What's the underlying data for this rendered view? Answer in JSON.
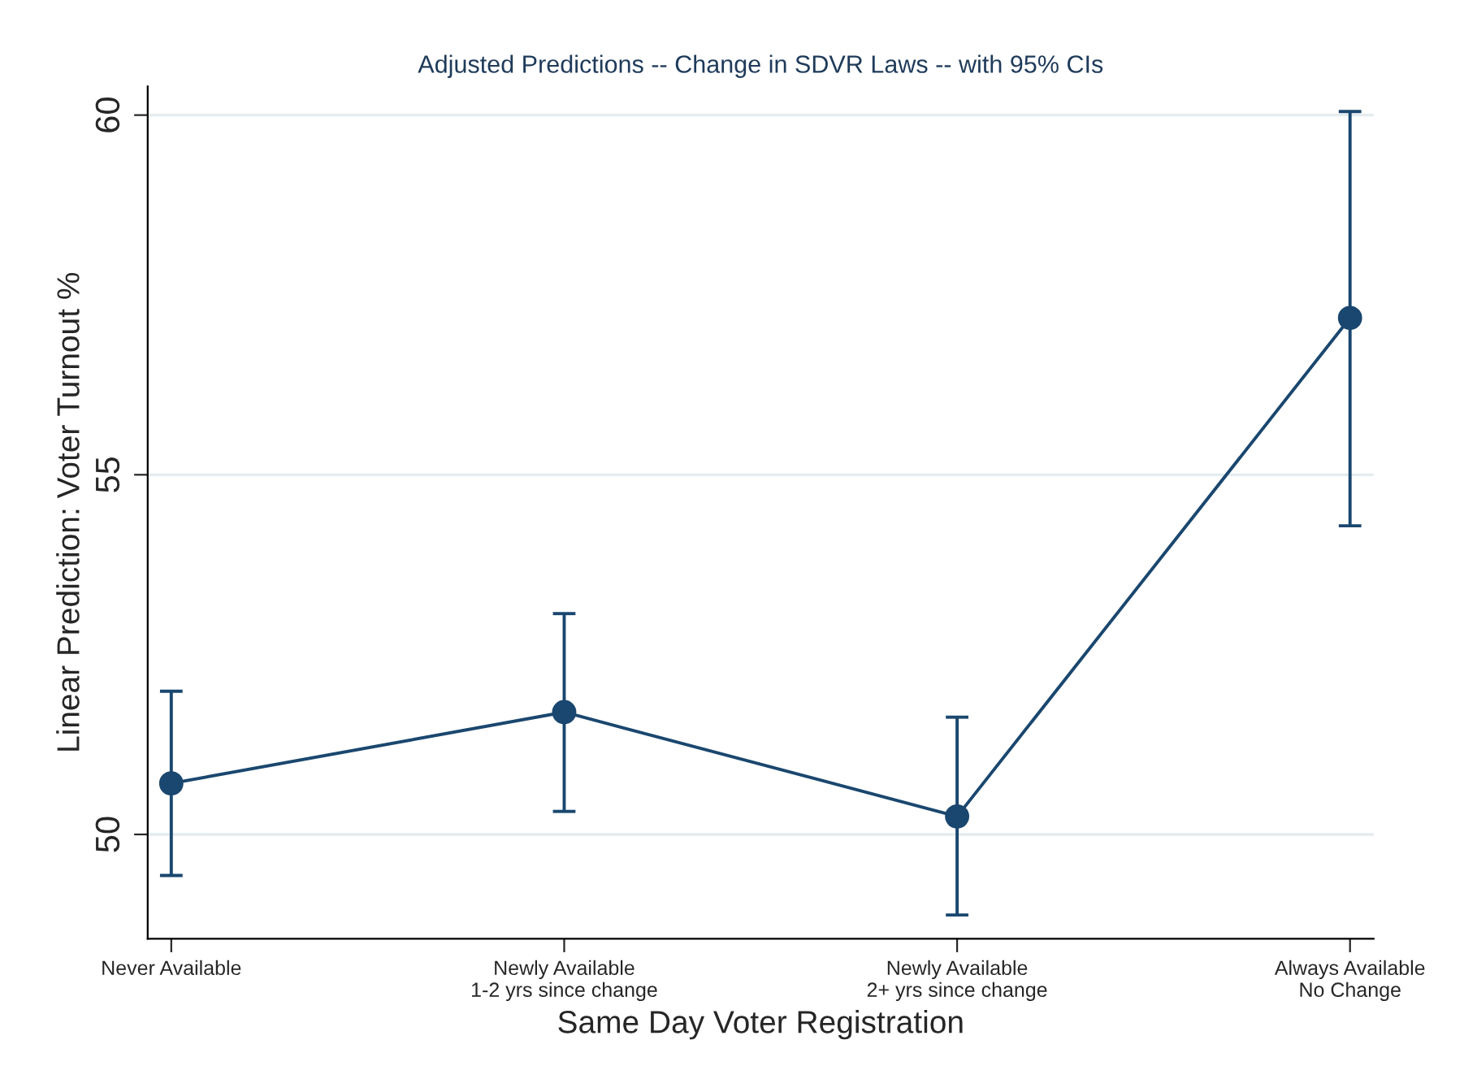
{
  "chart_data": {
    "type": "line",
    "title": "Adjusted Predictions -- Change in SDVR Laws -- with 95% CIs",
    "xlabel": "Same Day Voter Registration",
    "ylabel": "Linear Prediction: Voter Turnout %",
    "categories": [
      "Never Available",
      "Newly Available\n1-2 yrs since change",
      "Newly Available\n2+ yrs since change",
      "Always Available\nNo Change"
    ],
    "series": [
      {
        "color": "#1a476f",
        "values": [
          50.71,
          51.7,
          50.25,
          57.18
        ],
        "errors": [
          [
            49.43,
            51.99
          ],
          [
            50.32,
            53.07
          ],
          [
            48.88,
            51.63
          ],
          [
            54.29,
            60.05
          ]
        ]
      }
    ],
    "ylim": [
      48.55,
      60.4
    ],
    "yticks": [
      50,
      55,
      60
    ],
    "grid": "y",
    "marker": "circle",
    "line_style": "solid"
  }
}
